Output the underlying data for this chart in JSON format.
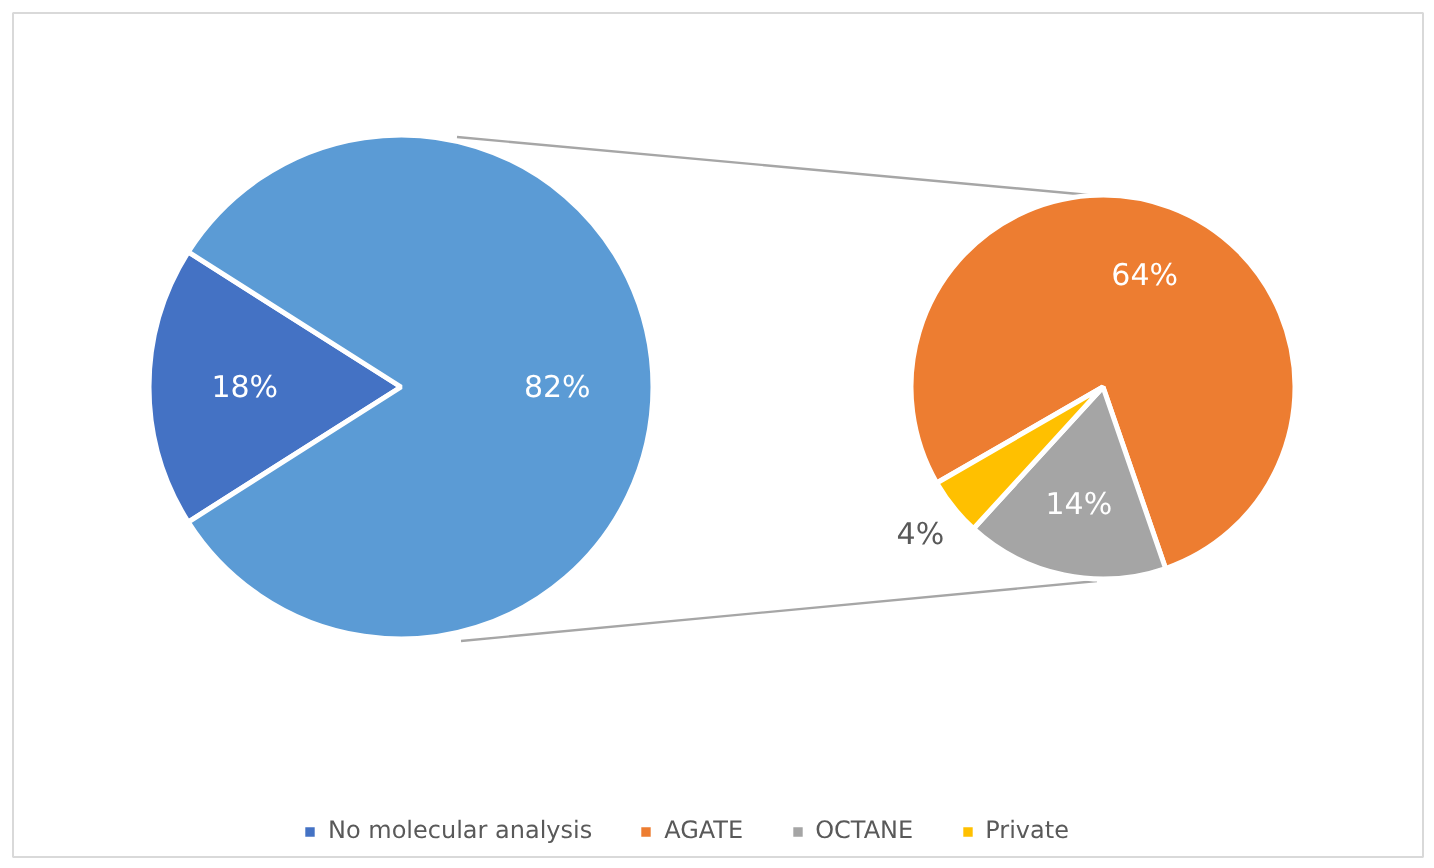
{
  "chart_data": [
    {
      "type": "pie",
      "categories": [
        "No molecular analysis",
        null
      ],
      "values": [
        18,
        82
      ],
      "colors": [
        "#4472c4",
        "#5b9bd5"
      ],
      "value_labels": [
        "18%",
        "82%"
      ],
      "legend": "bottom"
    },
    {
      "type": "pie",
      "categories": [
        "AGATE",
        "OCTANE",
        "Private"
      ],
      "values": [
        64,
        14,
        4
      ],
      "colors": [
        "#ed7d31",
        "#a5a5a5",
        "#ffc000"
      ],
      "value_labels": [
        "64%",
        "14%",
        "4%"
      ],
      "legend": "bottom"
    }
  ]
}
